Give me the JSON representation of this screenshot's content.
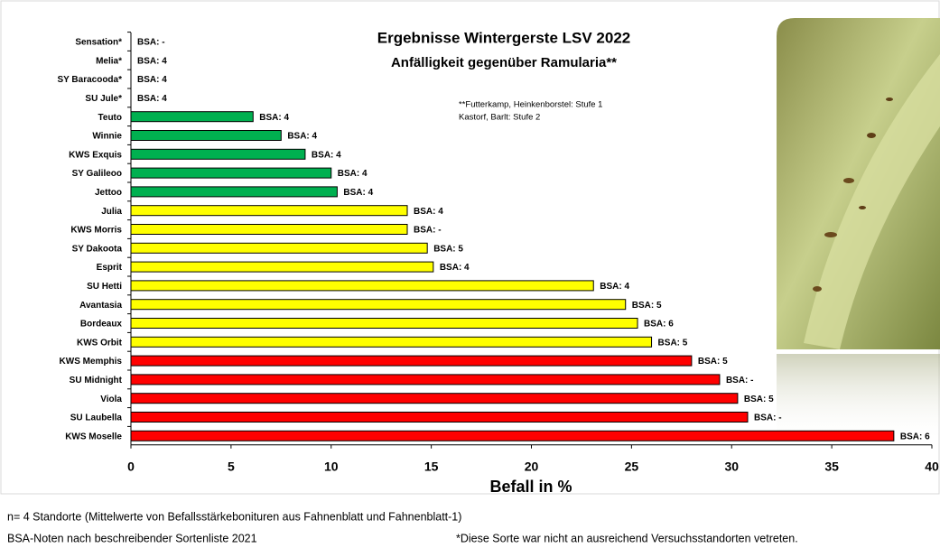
{
  "chart_data": {
    "type": "hbar",
    "title": "Ergebnisse Wintergerste LSV 2022",
    "subtitle": "Anfälligkeit gegenüber Ramularia**",
    "annotations": [
      "**Futterkamp, Heinkenborstel: Stufe 1",
      "Kastorf, Barlt: Stufe 2"
    ],
    "x_label": "Befall in %",
    "categories": [
      "Sensation*",
      "Melia*",
      "SY Baracooda*",
      "SU Jule*",
      "Teuto",
      "Winnie",
      "KWS Exquis",
      "SY Galileoo",
      "Jettoo",
      "Julia",
      "KWS Morris",
      "SY Dakoota",
      "Esprit",
      "SU Hetti",
      "Avantasia",
      "Bordeaux",
      "KWS Orbit",
      "KWS Memphis",
      "SU Midnight",
      "Viola",
      "SU Laubella",
      "KWS Moselle"
    ],
    "values": [
      null,
      null,
      null,
      null,
      6.1,
      7.5,
      8.7,
      10.0,
      10.3,
      13.8,
      13.8,
      14.8,
      15.1,
      23.1,
      24.7,
      25.3,
      26.0,
      28.0,
      29.4,
      30.3,
      30.8,
      38.1
    ],
    "bsa_labels": [
      "BSA: -",
      "BSA: 4",
      "BSA: 4",
      "BSA: 4",
      "BSA: 4",
      "BSA: 4",
      "BSA: 4",
      "BSA: 4",
      "BSA: 4",
      "BSA: 4",
      "BSA: -",
      "BSA: 5",
      "BSA: 4",
      "BSA: 4",
      "BSA: 5",
      "BSA: 6",
      "BSA: 5",
      "BSA: 5",
      "BSA: -",
      "BSA: 5",
      "BSA: -",
      "BSA: 6"
    ],
    "colors": [
      "#00b050",
      "#00b050",
      "#00b050",
      "#00b050",
      "#00b050",
      "#00b050",
      "#00b050",
      "#00b050",
      "#00b050",
      "#ffff00",
      "#ffff00",
      "#ffff00",
      "#ffff00",
      "#ffff00",
      "#ffff00",
      "#ffff00",
      "#ffff00",
      "#ff0000",
      "#ff0000",
      "#ff0000",
      "#ff0000",
      "#ff0000"
    ],
    "xlim": [
      0,
      40
    ],
    "xticks": [
      0,
      5,
      10,
      15,
      20,
      25,
      30,
      35,
      40
    ],
    "footnotes": [
      "n= 4 Standorte (Mittelwerte von Befallsstärkebonituren aus Fahnenblatt und Fahnenblatt-1)",
      "BSA-Noten nach beschreibender Sortenliste 2021",
      "*Diese Sorte war nicht an ausreichend Versuchsstandorten vetreten."
    ]
  }
}
